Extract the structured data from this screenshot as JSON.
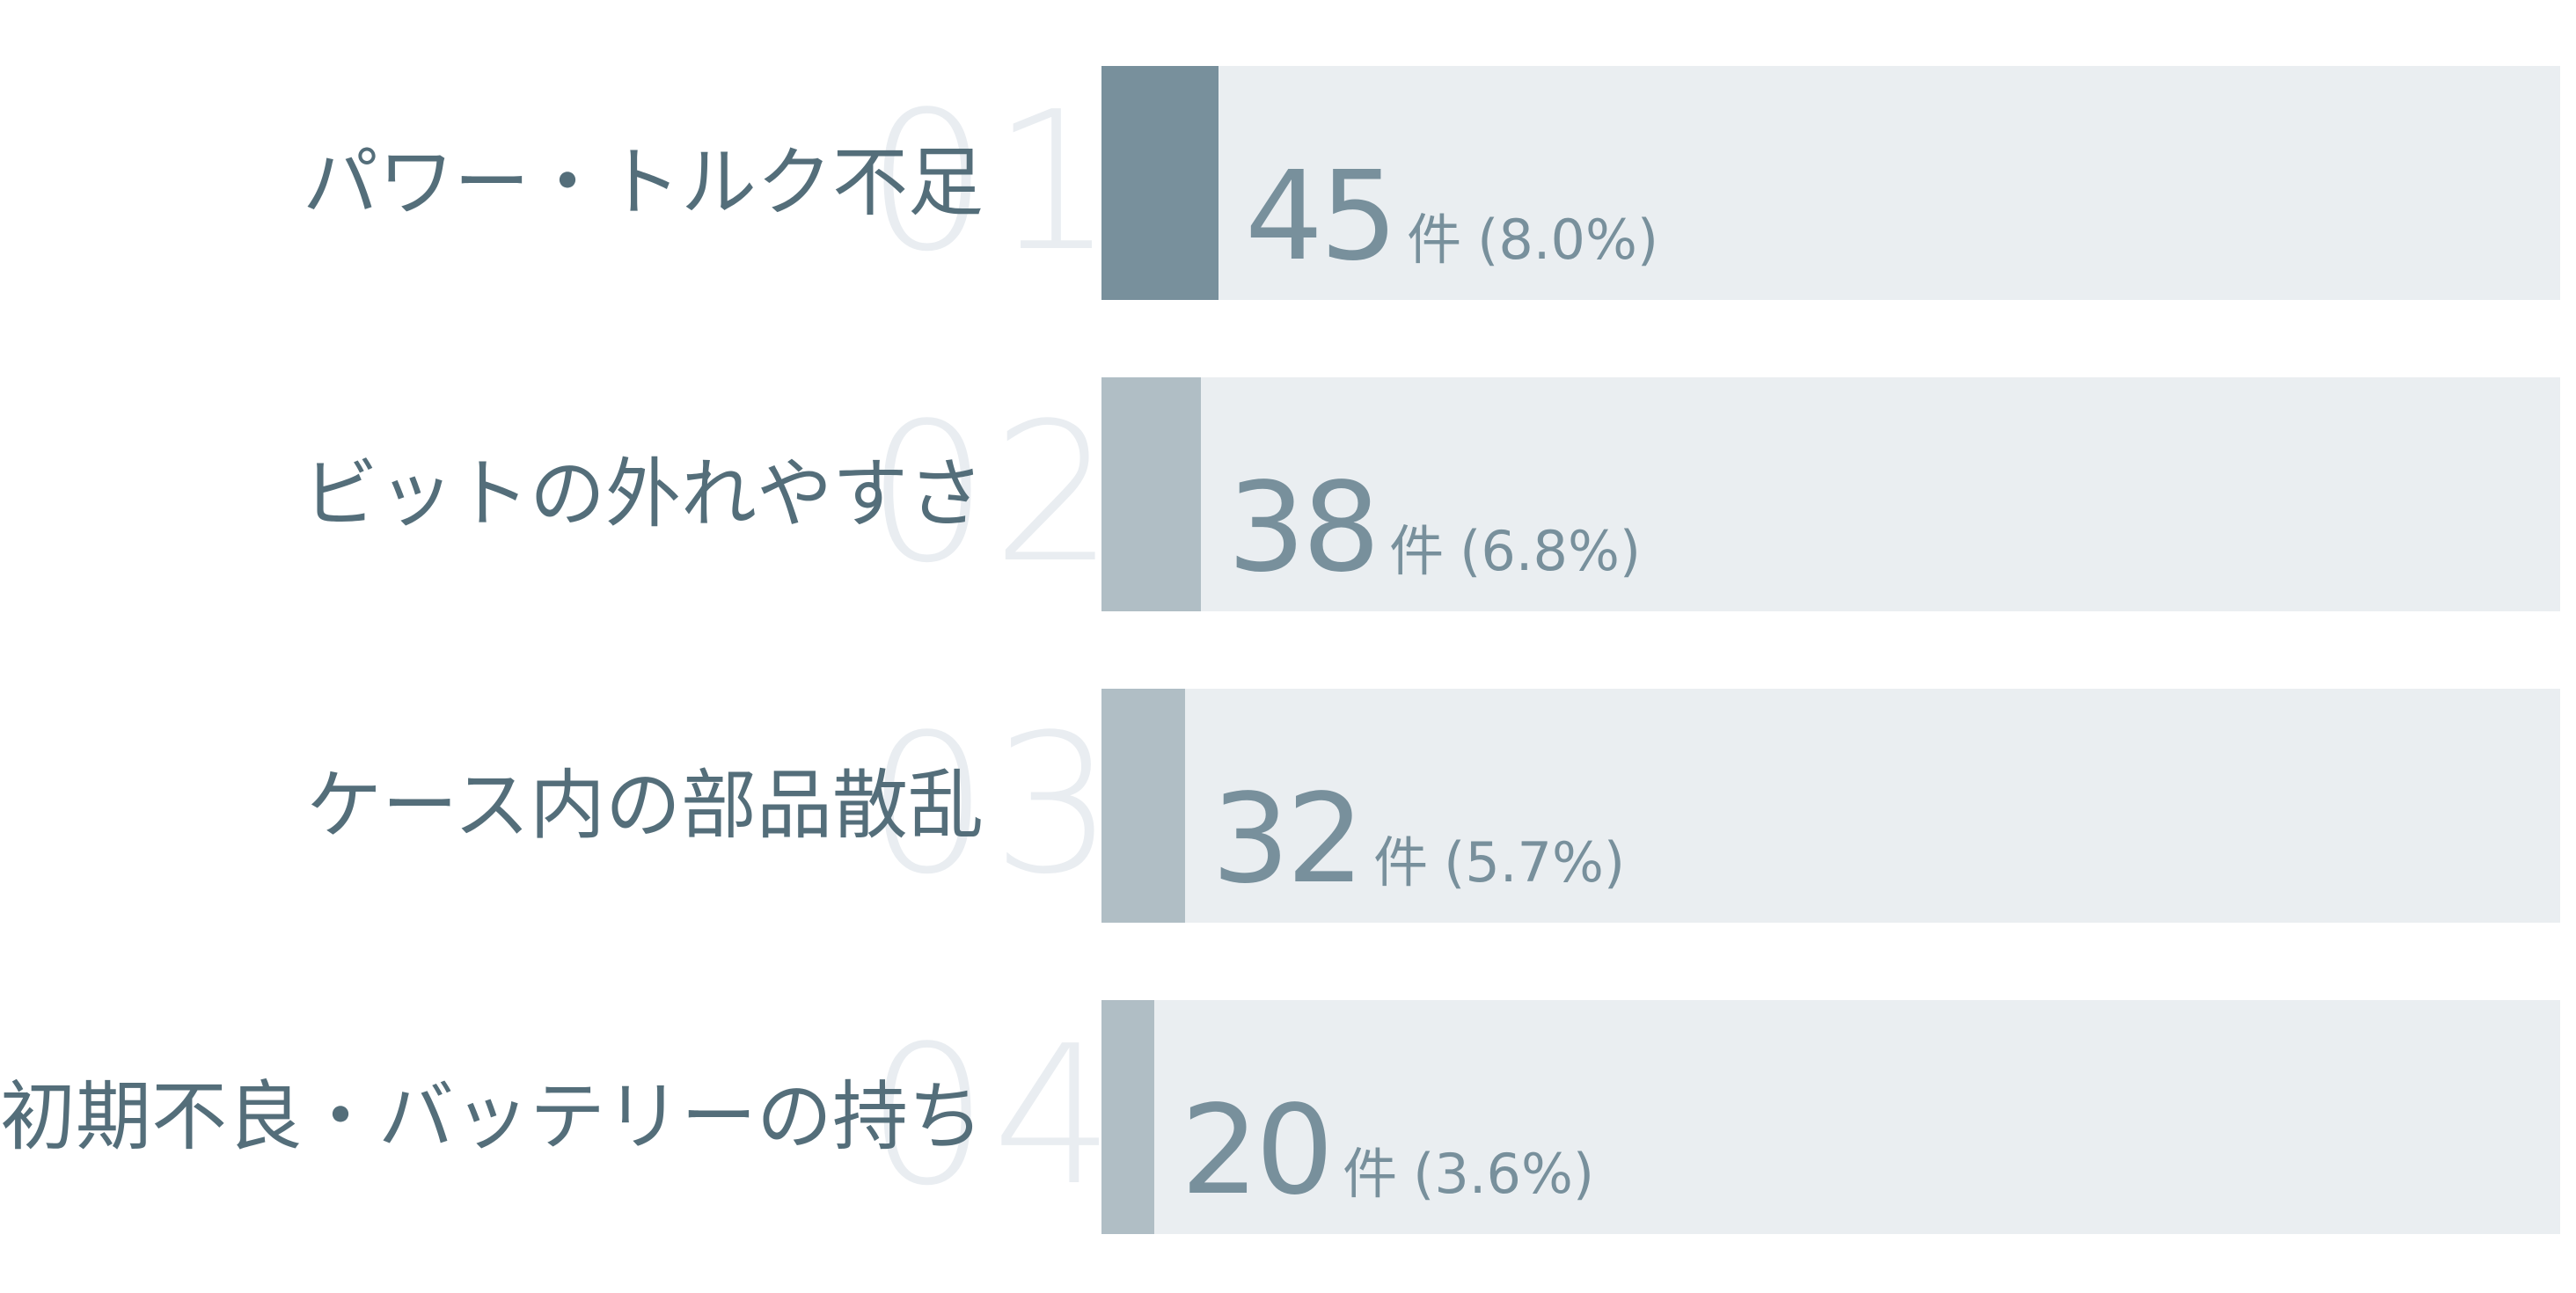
{
  "chart_data": {
    "type": "bar",
    "orientation": "horizontal",
    "title": "",
    "xlabel": "",
    "ylabel": "",
    "xlim": [
      0,
      100
    ],
    "unit": "件",
    "categories": [
      "パワー・トルク不足",
      "ビットの外れやすさ",
      "ケース内の部品散乱",
      "初期不良・バッテリーの持ち"
    ],
    "ranks": [
      "01",
      "02",
      "03",
      "04"
    ],
    "values": [
      45,
      38,
      32,
      20
    ],
    "percentages": [
      "(8.0%)",
      "(6.8%)",
      "(5.7%)",
      "(3.6%)"
    ],
    "percent_values": [
      8.0,
      6.8,
      5.7,
      3.6
    ],
    "grid": false,
    "colors": {
      "top_bar": "#78909c",
      "bar": "#b0bec5",
      "track": "#eaeef1",
      "rank_text": "#e9edf1",
      "label_text": "#546e7a",
      "value_text": "#78909c"
    }
  }
}
